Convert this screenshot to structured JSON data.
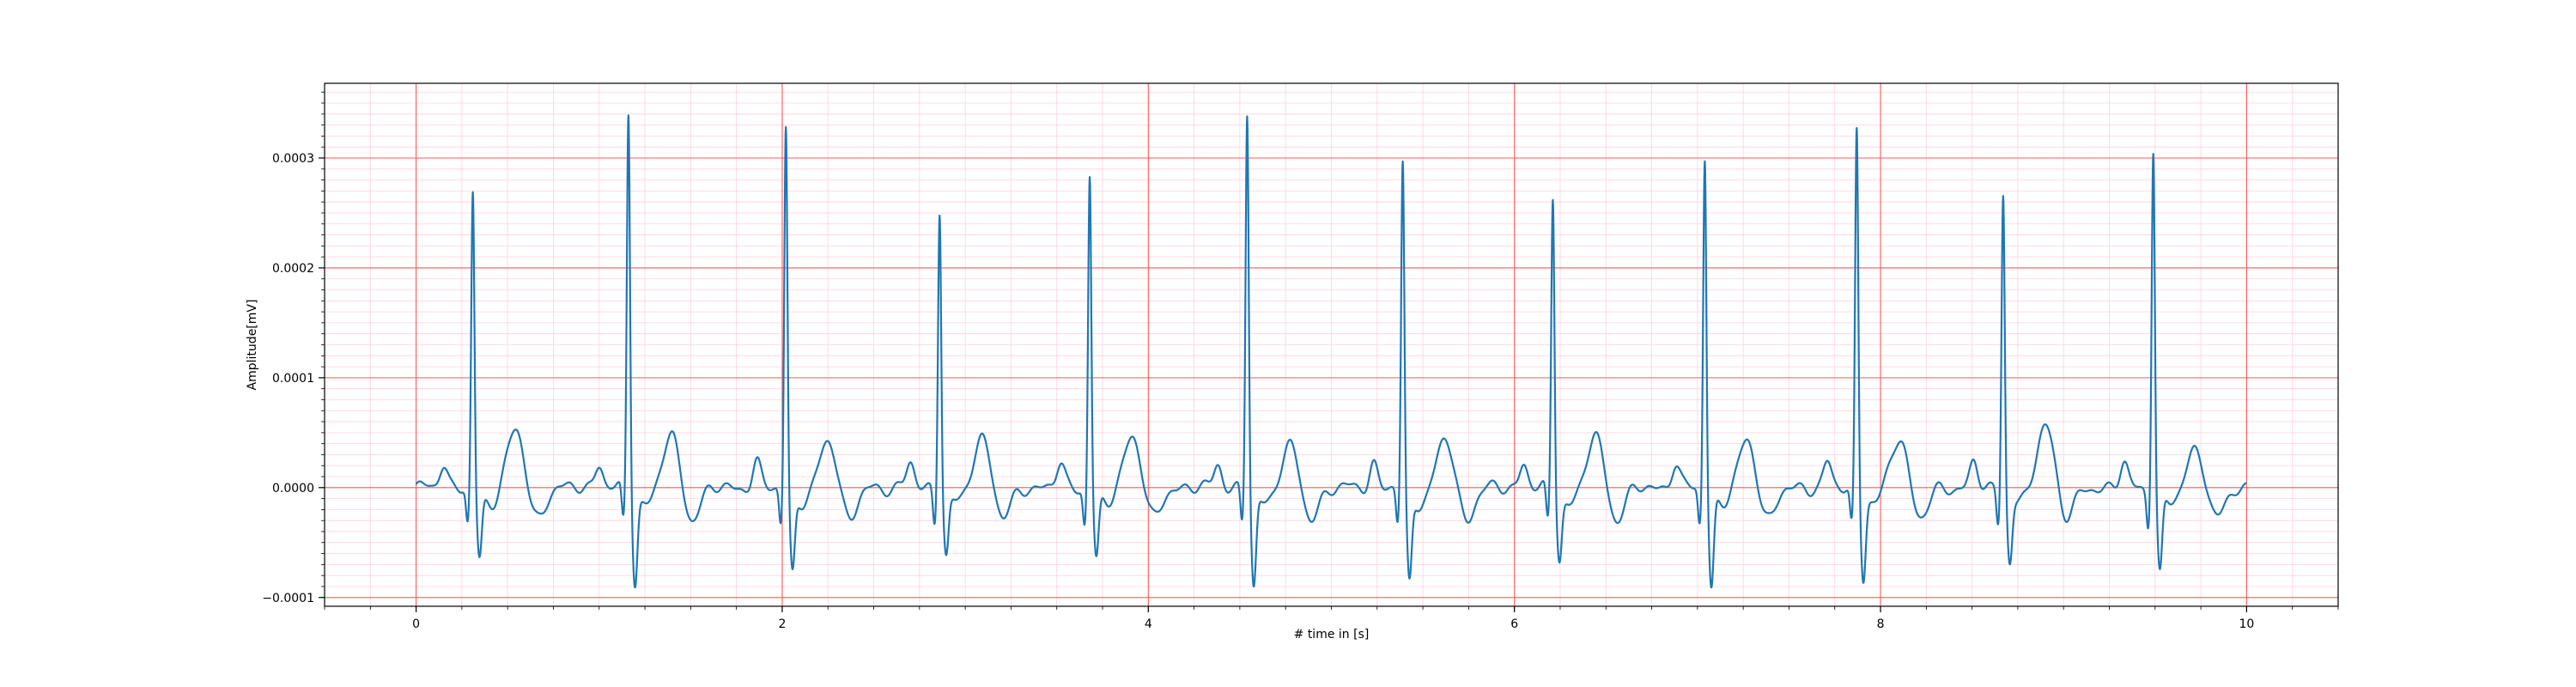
{
  "chart_data": {
    "type": "line",
    "title": "",
    "xlabel": "# time in [s]",
    "ylabel": "Amplitude[mV]",
    "xlim": [
      -0.5,
      10.5
    ],
    "ylim": [
      -0.000108,
      0.000368
    ],
    "x_ticks": [
      0,
      2,
      4,
      6,
      8,
      10
    ],
    "x_tick_labels": [
      "0",
      "2",
      "4",
      "6",
      "8",
      "10"
    ],
    "y_ticks": [
      -0.0001,
      0.0,
      0.0001,
      0.0002,
      0.0003
    ],
    "y_tick_labels": [
      "−0.0001",
      "0.0000",
      "0.0001",
      "0.0002",
      "0.0003"
    ],
    "grid": {
      "major": true,
      "minor": true
    },
    "colors": {
      "series": "#1f77b4",
      "major_grid": "#ff5a5a",
      "minor_grid": "#ffd0dc"
    },
    "series": [
      {
        "r_peaks": [
          0.31,
          1.16,
          2.02,
          2.86,
          3.68,
          4.54,
          5.39,
          6.21,
          7.04,
          7.87,
          8.67,
          9.49
        ],
        "r_amplitudes": [
          0.00027,
          0.000345,
          0.000333,
          0.000258,
          0.000288,
          0.000345,
          0.000298,
          0.000268,
          0.000305,
          0.00033,
          0.000272,
          0.000313
        ],
        "t_amplitudes": [
          5.5e-05,
          4.8e-05,
          4.6e-05,
          4.8e-05,
          5e-05,
          4e-05,
          4.6e-05,
          4.8e-05,
          4.4e-05,
          4.8e-05,
          6e-05,
          3.8e-05
        ],
        "s_amplitudes": [
          -6e-05,
          -8e-05,
          -7e-05,
          -5.5e-05,
          -6e-05,
          -8.5e-05,
          -8e-05,
          -5.8e-05,
          -8.5e-05,
          -7.5e-05,
          -6e-05,
          -7.3e-05
        ],
        "start": [
          0.0,
          -6e-06
        ],
        "end": [
          10.0,
          0.0
        ]
      }
    ]
  }
}
